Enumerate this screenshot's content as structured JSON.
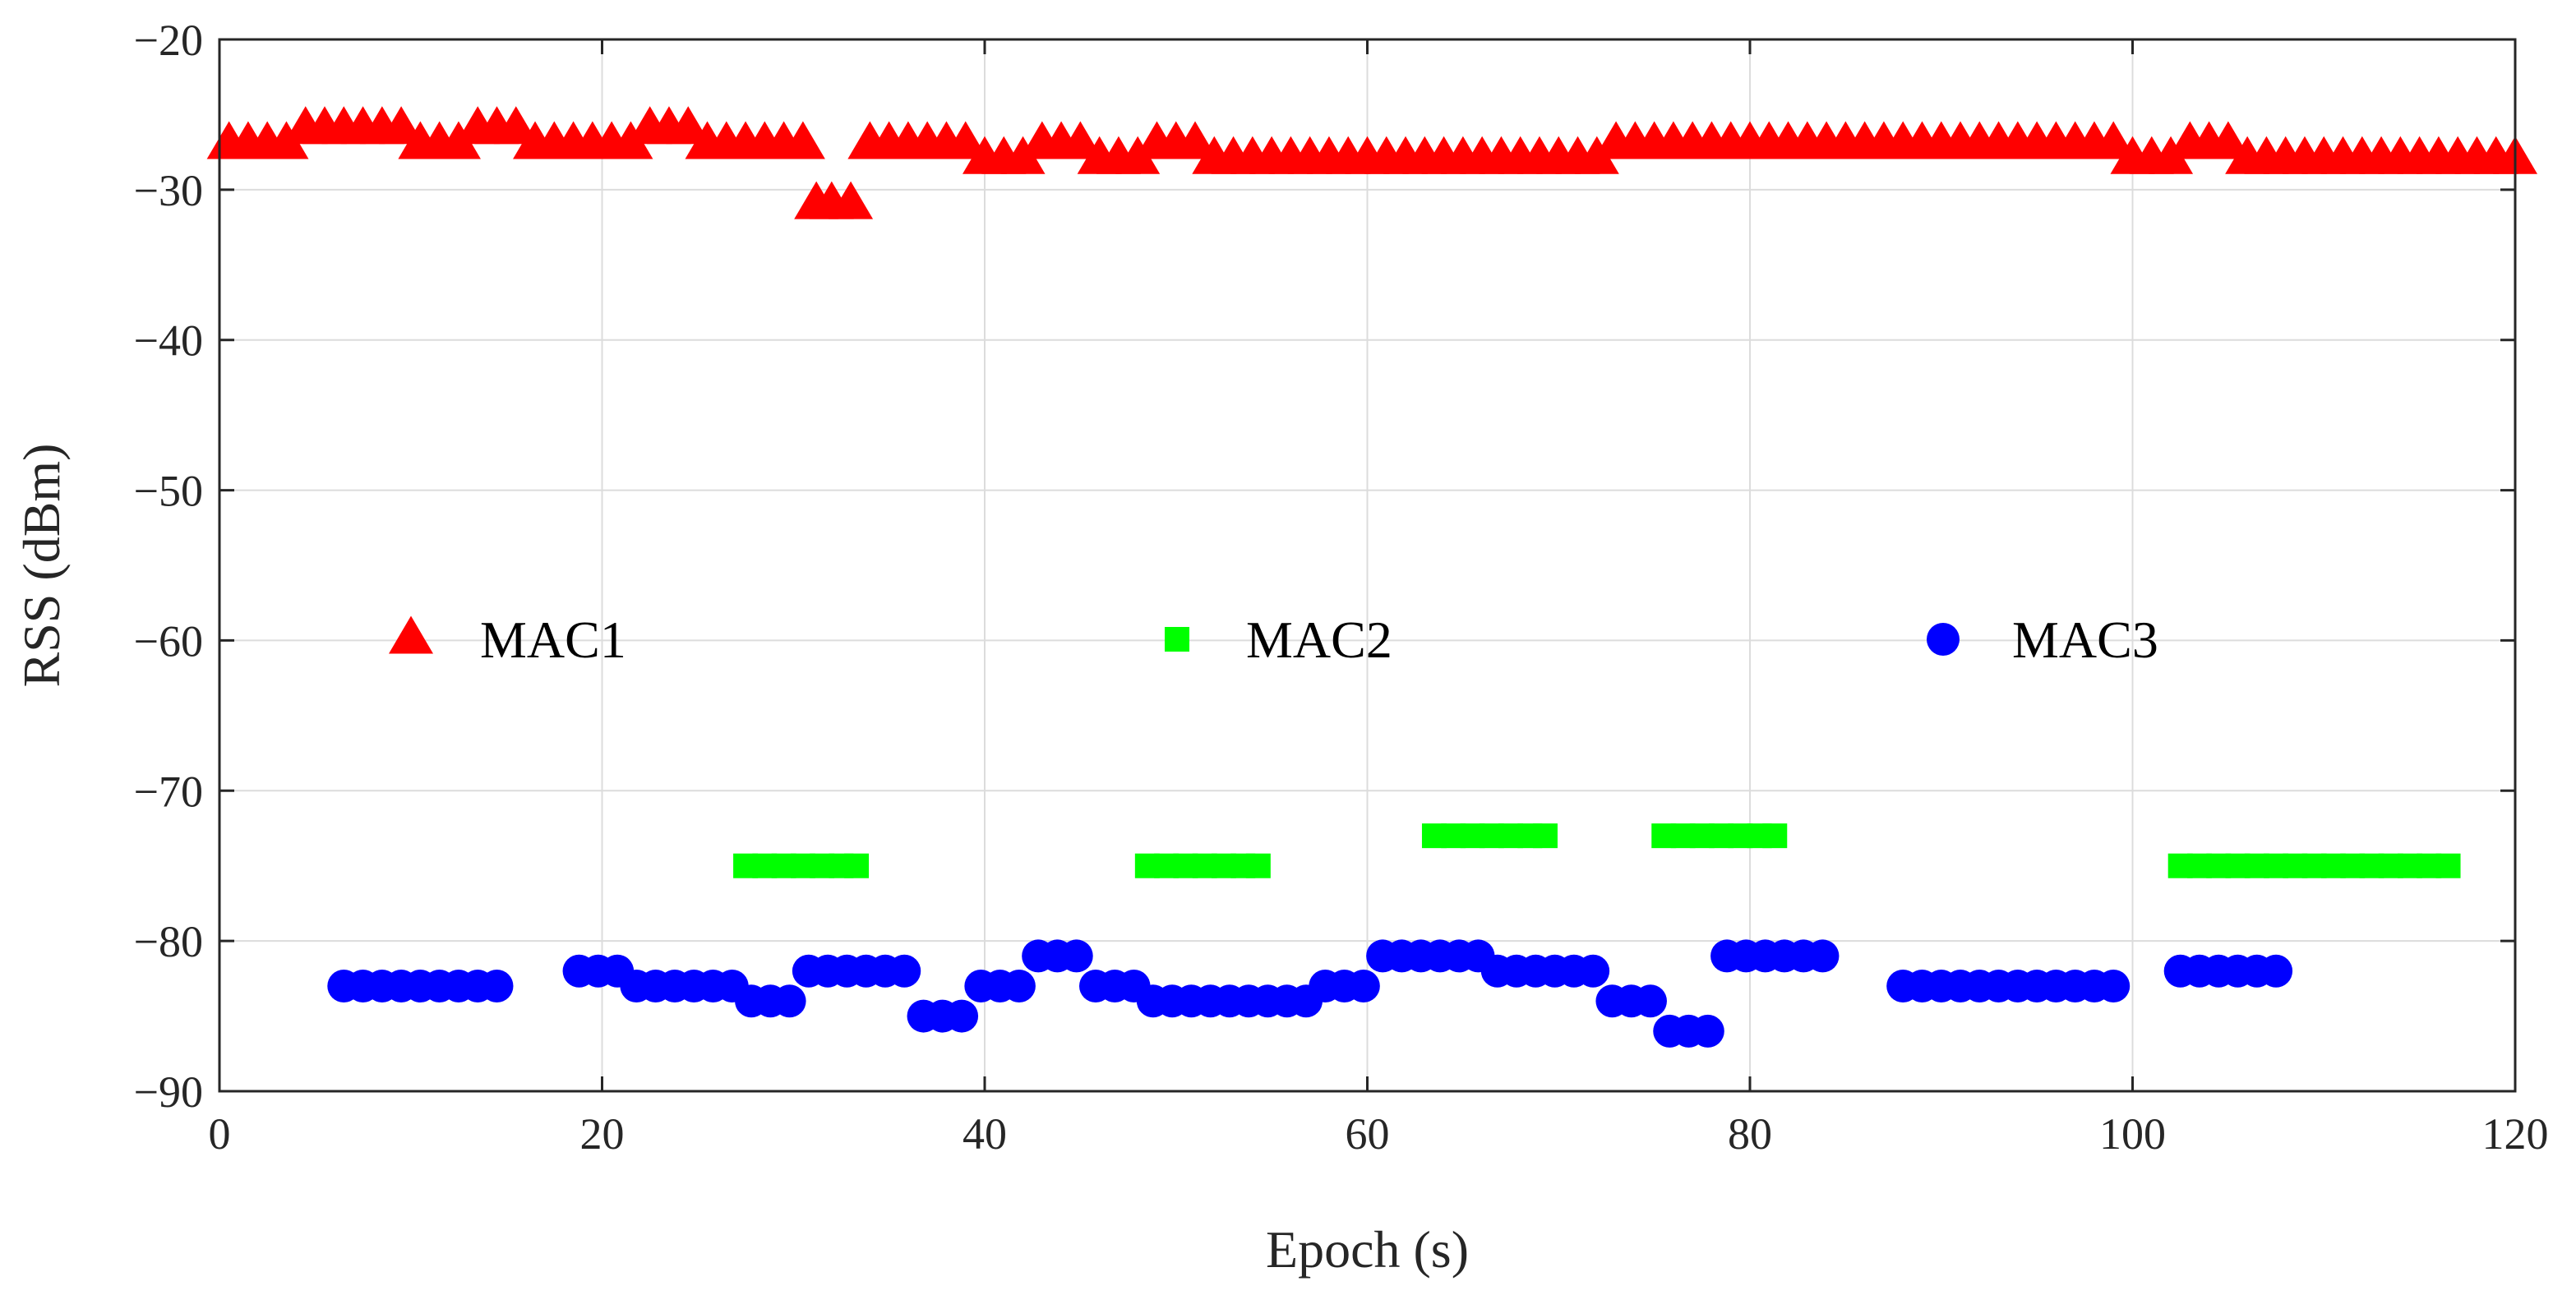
{
  "chart_data": {
    "type": "scatter",
    "xlabel": "Epoch (s)",
    "ylabel": "RSS (dBm)",
    "xlim": [
      0,
      120
    ],
    "ylim": [
      -90,
      -20
    ],
    "xticks": [
      0,
      20,
      40,
      60,
      80,
      100,
      120
    ],
    "yticks": [
      -20,
      -30,
      -40,
      -50,
      -60,
      -70,
      -80,
      -90
    ],
    "xtick_labels": [
      "0",
      "20",
      "40",
      "60",
      "80",
      "100",
      "120"
    ],
    "ytick_labels": [
      "−20",
      "−30",
      "−40",
      "−50",
      "−60",
      "−70",
      "−80",
      "−90"
    ],
    "grid": true,
    "legend_placement": "middle, horizontal",
    "series": [
      {
        "name": "MAC1",
        "marker": "triangle",
        "color": "#ff0000",
        "points": [
          [
            0.5,
            -27
          ],
          [
            1.5,
            -27
          ],
          [
            2.5,
            -27
          ],
          [
            3.5,
            -27
          ],
          [
            4.5,
            -26
          ],
          [
            5.5,
            -26
          ],
          [
            6.5,
            -26
          ],
          [
            7.5,
            -26
          ],
          [
            8.5,
            -26
          ],
          [
            9.5,
            -26
          ],
          [
            10.5,
            -27
          ],
          [
            11.5,
            -27
          ],
          [
            12.5,
            -27
          ],
          [
            13.5,
            -26
          ],
          [
            14.5,
            -26
          ],
          [
            15.5,
            -26
          ],
          [
            16.5,
            -27
          ],
          [
            17.5,
            -27
          ],
          [
            18.5,
            -27
          ],
          [
            19.5,
            -27
          ],
          [
            20.5,
            -27
          ],
          [
            21.5,
            -27
          ],
          [
            22.5,
            -26
          ],
          [
            23.5,
            -26
          ],
          [
            24.5,
            -26
          ],
          [
            25.5,
            -27
          ],
          [
            26.5,
            -27
          ],
          [
            27.5,
            -27
          ],
          [
            28.5,
            -27
          ],
          [
            29.5,
            -27
          ],
          [
            30.5,
            -27
          ],
          [
            31.2,
            -31
          ],
          [
            32.0,
            -31
          ],
          [
            33.0,
            -31
          ],
          [
            34.0,
            -27
          ],
          [
            35.0,
            -27
          ],
          [
            36.0,
            -27
          ],
          [
            37.0,
            -27
          ],
          [
            38.0,
            -27
          ],
          [
            39.0,
            -27
          ],
          [
            40.0,
            -28
          ],
          [
            41.0,
            -28
          ],
          [
            42.0,
            -28
          ],
          [
            43.0,
            -27
          ],
          [
            44.0,
            -27
          ],
          [
            45.0,
            -27
          ],
          [
            46.0,
            -28
          ],
          [
            47.0,
            -28
          ],
          [
            48.0,
            -28
          ],
          [
            49.0,
            -27
          ],
          [
            50.0,
            -27
          ],
          [
            51.0,
            -27
          ],
          [
            52.0,
            -28
          ],
          [
            53.0,
            -28
          ],
          [
            54.0,
            -28
          ],
          [
            55.0,
            -28
          ],
          [
            56.0,
            -28
          ],
          [
            57.0,
            -28
          ],
          [
            58.0,
            -28
          ],
          [
            59.0,
            -28
          ],
          [
            60.0,
            -28
          ],
          [
            61.0,
            -28
          ],
          [
            62.0,
            -28
          ],
          [
            63.0,
            -28
          ],
          [
            64.0,
            -28
          ],
          [
            65.0,
            -28
          ],
          [
            66.0,
            -28
          ],
          [
            67.0,
            -28
          ],
          [
            68.0,
            -28
          ],
          [
            69.0,
            -28
          ],
          [
            70.0,
            -28
          ],
          [
            71.0,
            -28
          ],
          [
            72.0,
            -28
          ],
          [
            73.0,
            -27
          ],
          [
            74.0,
            -27
          ],
          [
            75.0,
            -27
          ],
          [
            76.0,
            -27
          ],
          [
            77.0,
            -27
          ],
          [
            78.0,
            -27
          ],
          [
            79.0,
            -27
          ],
          [
            80.0,
            -27
          ],
          [
            81.0,
            -27
          ],
          [
            82.0,
            -27
          ],
          [
            83.0,
            -27
          ],
          [
            84.0,
            -27
          ],
          [
            85.0,
            -27
          ],
          [
            86.0,
            -27
          ],
          [
            87.0,
            -27
          ],
          [
            88.0,
            -27
          ],
          [
            89.0,
            -27
          ],
          [
            90.0,
            -27
          ],
          [
            91.0,
            -27
          ],
          [
            92.0,
            -27
          ],
          [
            93.0,
            -27
          ],
          [
            94.0,
            -27
          ],
          [
            95.0,
            -27
          ],
          [
            96.0,
            -27
          ],
          [
            97.0,
            -27
          ],
          [
            98.0,
            -27
          ],
          [
            99.0,
            -27
          ],
          [
            100.0,
            -28
          ],
          [
            101.0,
            -28
          ],
          [
            102.0,
            -28
          ],
          [
            103.0,
            -27
          ],
          [
            104.0,
            -27
          ],
          [
            105.0,
            -27
          ],
          [
            106.0,
            -28
          ],
          [
            107.0,
            -28
          ],
          [
            108.0,
            -28
          ],
          [
            109.0,
            -28
          ],
          [
            110.0,
            -28
          ],
          [
            111.0,
            -28
          ],
          [
            112.0,
            -28
          ],
          [
            113.0,
            -28
          ],
          [
            114.0,
            -28
          ],
          [
            115.0,
            -28
          ],
          [
            116.0,
            -28
          ],
          [
            117.0,
            -28
          ],
          [
            118.0,
            -28
          ],
          [
            119.0,
            -28
          ],
          [
            120.0,
            -28
          ]
        ]
      },
      {
        "name": "MAC2",
        "marker": "square",
        "color": "#00ff00",
        "points": [
          [
            27.5,
            -75
          ],
          [
            28.5,
            -75
          ],
          [
            29.5,
            -75
          ],
          [
            30.5,
            -75
          ],
          [
            31.5,
            -75
          ],
          [
            32.5,
            -75
          ],
          [
            33.3,
            -75
          ],
          [
            48.5,
            -75
          ],
          [
            49.5,
            -75
          ],
          [
            50.5,
            -75
          ],
          [
            51.5,
            -75
          ],
          [
            52.5,
            -75
          ],
          [
            53.5,
            -75
          ],
          [
            54.3,
            -75
          ],
          [
            63.5,
            -73
          ],
          [
            64.5,
            -73
          ],
          [
            65.5,
            -73
          ],
          [
            66.5,
            -73
          ],
          [
            67.5,
            -73
          ],
          [
            68.5,
            -73
          ],
          [
            69.3,
            -73
          ],
          [
            75.5,
            -73
          ],
          [
            76.5,
            -73
          ],
          [
            77.5,
            -73
          ],
          [
            78.5,
            -73
          ],
          [
            79.5,
            -73
          ],
          [
            80.5,
            -73
          ],
          [
            81.3,
            -73
          ],
          [
            102.5,
            -75
          ],
          [
            103.5,
            -75
          ],
          [
            104.5,
            -75
          ],
          [
            105.5,
            -75
          ],
          [
            106.5,
            -75
          ],
          [
            107.5,
            -75
          ],
          [
            108.5,
            -75
          ],
          [
            109.5,
            -75
          ],
          [
            110.5,
            -75
          ],
          [
            111.5,
            -75
          ],
          [
            112.5,
            -75
          ],
          [
            113.5,
            -75
          ],
          [
            114.5,
            -75
          ],
          [
            115.5,
            -75
          ],
          [
            116.5,
            -75
          ]
        ]
      },
      {
        "name": "MAC3",
        "marker": "circle",
        "color": "#0000ff",
        "points": [
          [
            6.5,
            -83
          ],
          [
            7.5,
            -83
          ],
          [
            8.5,
            -83
          ],
          [
            9.5,
            -83
          ],
          [
            10.5,
            -83
          ],
          [
            11.5,
            -83
          ],
          [
            12.5,
            -83
          ],
          [
            13.5,
            -83
          ],
          [
            14.5,
            -83
          ],
          [
            18.8,
            -82
          ],
          [
            19.8,
            -82
          ],
          [
            20.8,
            -82
          ],
          [
            21.8,
            -83
          ],
          [
            22.8,
            -83
          ],
          [
            23.8,
            -83
          ],
          [
            24.8,
            -83
          ],
          [
            25.8,
            -83
          ],
          [
            26.8,
            -83
          ],
          [
            27.8,
            -84
          ],
          [
            28.8,
            -84
          ],
          [
            29.8,
            -84
          ],
          [
            30.8,
            -82
          ],
          [
            31.8,
            -82
          ],
          [
            32.8,
            -82
          ],
          [
            33.8,
            -82
          ],
          [
            34.8,
            -82
          ],
          [
            35.8,
            -82
          ],
          [
            36.8,
            -85
          ],
          [
            37.8,
            -85
          ],
          [
            38.8,
            -85
          ],
          [
            39.8,
            -83
          ],
          [
            40.8,
            -83
          ],
          [
            41.8,
            -83
          ],
          [
            42.8,
            -81
          ],
          [
            43.8,
            -81
          ],
          [
            44.8,
            -81
          ],
          [
            45.8,
            -83
          ],
          [
            46.8,
            -83
          ],
          [
            47.8,
            -83
          ],
          [
            48.8,
            -84
          ],
          [
            49.8,
            -84
          ],
          [
            50.8,
            -84
          ],
          [
            51.8,
            -84
          ],
          [
            52.8,
            -84
          ],
          [
            53.8,
            -84
          ],
          [
            54.8,
            -84
          ],
          [
            55.8,
            -84
          ],
          [
            56.8,
            -84
          ],
          [
            57.8,
            -83
          ],
          [
            58.8,
            -83
          ],
          [
            59.8,
            -83
          ],
          [
            60.8,
            -81
          ],
          [
            61.8,
            -81
          ],
          [
            62.8,
            -81
          ],
          [
            63.8,
            -81
          ],
          [
            64.8,
            -81
          ],
          [
            65.8,
            -81
          ],
          [
            66.8,
            -82
          ],
          [
            67.8,
            -82
          ],
          [
            68.8,
            -82
          ],
          [
            69.8,
            -82
          ],
          [
            70.8,
            -82
          ],
          [
            71.8,
            -82
          ],
          [
            72.8,
            -84
          ],
          [
            73.8,
            -84
          ],
          [
            74.8,
            -84
          ],
          [
            75.8,
            -86
          ],
          [
            76.8,
            -86
          ],
          [
            77.8,
            -86
          ],
          [
            78.8,
            -81
          ],
          [
            79.8,
            -81
          ],
          [
            80.8,
            -81
          ],
          [
            81.8,
            -81
          ],
          [
            82.8,
            -81
          ],
          [
            83.8,
            -81
          ],
          [
            88.0,
            -83
          ],
          [
            89.0,
            -83
          ],
          [
            90.0,
            -83
          ],
          [
            91.0,
            -83
          ],
          [
            92.0,
            -83
          ],
          [
            93.0,
            -83
          ],
          [
            94.0,
            -83
          ],
          [
            95.0,
            -83
          ],
          [
            96.0,
            -83
          ],
          [
            97.0,
            -83
          ],
          [
            98.0,
            -83
          ],
          [
            99.0,
            -83
          ],
          [
            102.5,
            -82
          ],
          [
            103.5,
            -82
          ],
          [
            104.5,
            -82
          ],
          [
            105.5,
            -82
          ],
          [
            106.5,
            -82
          ],
          [
            107.5,
            -82
          ]
        ]
      }
    ]
  }
}
